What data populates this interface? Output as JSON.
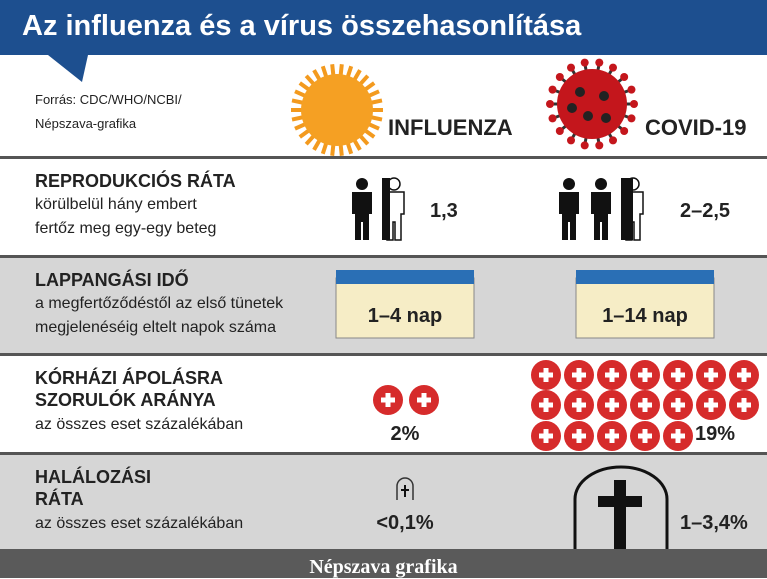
{
  "title": "Az influenza és a vírus összehasonlítása",
  "source": [
    "Forrás: CDC/WHO/NCBI/",
    "Népszava-grafika"
  ],
  "columns": [
    "INFLUENZA",
    "COVID-19"
  ],
  "rows": [
    {
      "title": [
        "REPRODUKCIÓS RÁTA"
      ],
      "description": [
        "körülbelül hány embert",
        "fertőz meg egy-egy beteg"
      ],
      "influenza": "1,3",
      "covid": "2–2,5"
    },
    {
      "title": [
        "LAPPANGÁSI IDŐ"
      ],
      "description": [
        "a megfertőződéstől az első tünetek",
        "megjelenéséig eltelt napok száma"
      ],
      "influenza": "1–4 nap",
      "covid": "1–14 nap"
    },
    {
      "title": [
        "KÓRHÁZI ÁPOLÁSRA",
        "SZORULÓK ARÁNYA"
      ],
      "description": [
        "az összes eset százalékában"
      ],
      "influenza": "2%",
      "covid": "19%"
    },
    {
      "title": [
        "HALÁLOZÁSI",
        "RÁTA"
      ],
      "description": [
        "az összes eset százalékában"
      ],
      "influenza": "<0,1%",
      "covid": "1–3,4%"
    }
  ],
  "footer": "Népszava grafika"
}
